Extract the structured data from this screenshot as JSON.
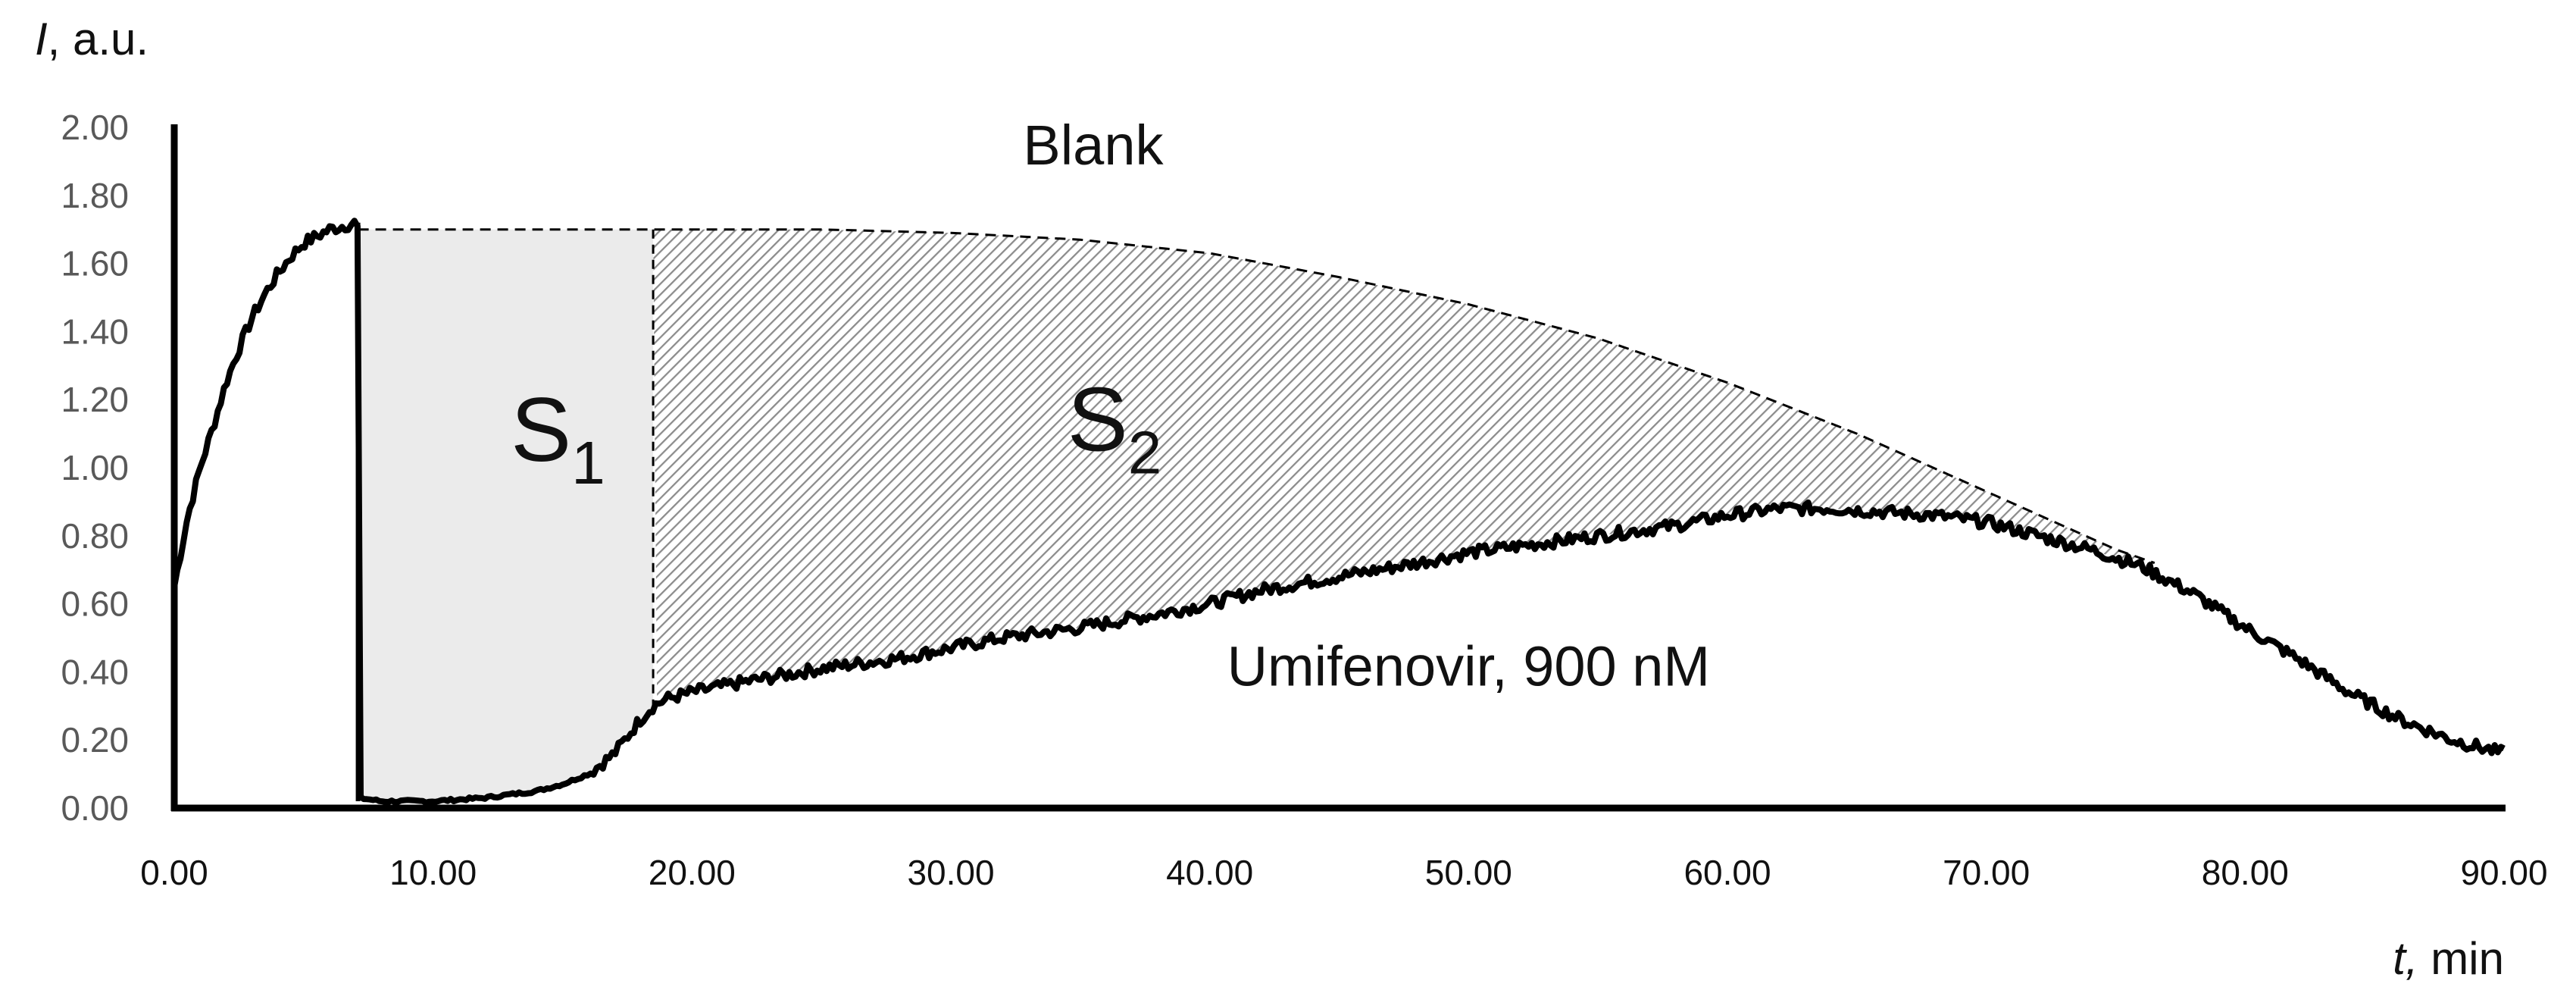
{
  "chart_data": {
    "type": "line",
    "ylabel": {
      "symbol": "I",
      "unit": ", a.u."
    },
    "xlabel": {
      "symbol": "t,",
      "unit": " min"
    },
    "xlim": [
      0,
      90
    ],
    "ylim": [
      0,
      2
    ],
    "x_ticks": [
      "0.00",
      "10.00",
      "20.00",
      "30.00",
      "40.00",
      "50.00",
      "60.00",
      "70.00",
      "80.00",
      "90.00"
    ],
    "y_ticks": [
      "0.00",
      "0.20",
      "0.40",
      "0.60",
      "0.80",
      "1.00",
      "1.20",
      "1.40",
      "1.60",
      "1.80",
      "2.00"
    ],
    "grid": false,
    "series": [
      {
        "name": "Blank",
        "style": "dashed",
        "x": [
          7.1,
          18.5,
          25,
          30,
          35,
          40,
          45,
          50,
          55,
          60,
          65,
          70,
          75,
          76.5
        ],
        "y": [
          1.7,
          1.7,
          1.7,
          1.69,
          1.67,
          1.63,
          1.56,
          1.48,
          1.38,
          1.25,
          1.1,
          0.93,
          0.76,
          0.72
        ]
      },
      {
        "name": "Umifenovir, 900 nM",
        "style": "solid",
        "x": [
          0,
          0.5,
          1,
          1.5,
          2,
          2.5,
          3,
          3.5,
          4,
          4.5,
          5,
          5.5,
          6,
          6.5,
          7.0,
          7.1,
          7.15,
          8,
          9,
          10,
          11,
          12,
          13,
          14,
          15,
          16,
          17,
          17.5,
          18,
          18.5,
          19,
          20,
          22,
          25,
          28,
          30,
          32,
          35,
          38,
          40,
          42,
          45,
          48,
          50,
          52,
          55,
          58,
          60,
          62,
          64,
          66,
          68,
          70,
          72,
          74,
          76,
          78,
          80,
          82,
          84,
          86,
          88,
          90
        ],
        "y": [
          0.65,
          0.85,
          1.0,
          1.12,
          1.25,
          1.35,
          1.44,
          1.51,
          1.57,
          1.62,
          1.66,
          1.68,
          1.7,
          1.71,
          1.72,
          1.7,
          0.03,
          0.02,
          0.02,
          0.02,
          0.025,
          0.03,
          0.04,
          0.05,
          0.07,
          0.1,
          0.16,
          0.21,
          0.26,
          0.3,
          0.32,
          0.34,
          0.37,
          0.41,
          0.44,
          0.47,
          0.5,
          0.53,
          0.57,
          0.6,
          0.64,
          0.68,
          0.72,
          0.75,
          0.77,
          0.8,
          0.83,
          0.86,
          0.88,
          0.88,
          0.87,
          0.86,
          0.84,
          0.8,
          0.76,
          0.71,
          0.63,
          0.53,
          0.44,
          0.34,
          0.26,
          0.2,
          0.16
        ]
      }
    ],
    "regions": [
      {
        "label": "S",
        "subscript": "1",
        "fill": "#ebebeb",
        "x_from": 7.1,
        "x_to": 18.5
      },
      {
        "label": "S",
        "subscript": "2",
        "fill": "hatched",
        "x_from": 18.5,
        "x_to": 76.5
      }
    ],
    "annotations": [
      {
        "text": "Blank",
        "x": 35.5,
        "y": 1.94
      },
      {
        "text": "Umifenovir, 900 nM",
        "x": 50,
        "y": 0.4
      }
    ],
    "colors": {
      "line": "#000000",
      "axis": "#000000",
      "s1_fill": "#ebebeb",
      "hatch": "#8c8c8c"
    }
  }
}
